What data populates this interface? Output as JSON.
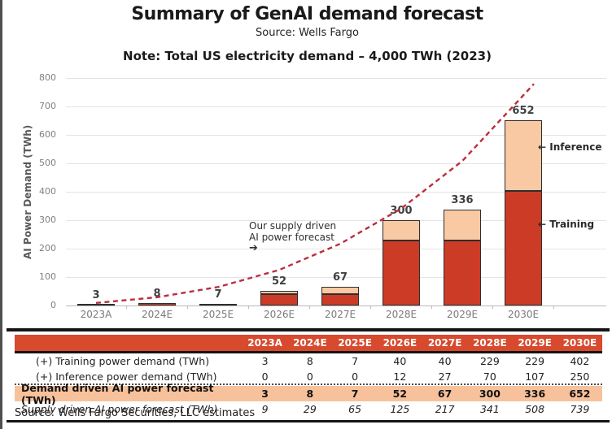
{
  "header": {
    "title": "Summary of GenAI demand forecast",
    "source": "Source: Wells Fargo",
    "note": "Note: Total US electricity demand – 4,000 TWh (2023)"
  },
  "chart_data": {
    "type": "bar",
    "categories": [
      "2023A",
      "2024E",
      "2025E",
      "2026E",
      "2027E",
      "2028E",
      "2029E",
      "2030E"
    ],
    "series": [
      {
        "name": "Training power demand (TWh)",
        "role": "bar-stack-bottom",
        "values": [
          3,
          8,
          7,
          40,
          40,
          229,
          229,
          402
        ]
      },
      {
        "name": "Inference power demand (TWh)",
        "role": "bar-stack-top",
        "values": [
          0,
          0,
          0,
          12,
          27,
          70,
          107,
          250
        ]
      },
      {
        "name": "Supply driven AI power forecast (TWh)",
        "role": "dashed-line",
        "values": [
          9,
          29,
          65,
          125,
          217,
          341,
          508,
          739
        ]
      }
    ],
    "bar_total_labels": [
      "3",
      "8",
      "7",
      "52",
      "67",
      "300",
      "336",
      "652"
    ],
    "title": "Summary of GenAI demand forecast",
    "xlabel": "",
    "ylabel": "AI Power Demand (TWh)",
    "ylim": [
      0,
      800
    ],
    "ytick_step": 100,
    "grid": true,
    "legend_position": "inline-annotations",
    "annotations": {
      "supply": {
        "line1": "Our supply driven",
        "line2": "AI power forecast",
        "arrow": "➔"
      },
      "inference": {
        "arrow": "←",
        "label": "Inference"
      },
      "training": {
        "arrow": "←",
        "label": "Training"
      }
    }
  },
  "table": {
    "year_headers": [
      "2023A",
      "2024E",
      "2025E",
      "2026E",
      "2027E",
      "2028E",
      "2029E",
      "2030E"
    ],
    "rows": [
      {
        "label": "(+) Training power demand (TWh)",
        "style": "normal",
        "values": [
          "3",
          "8",
          "7",
          "40",
          "40",
          "229",
          "229",
          "402"
        ]
      },
      {
        "label": "(+) Inference power demand (TWh)",
        "style": "dotted",
        "values": [
          "0",
          "0",
          "0",
          "12",
          "27",
          "70",
          "107",
          "250"
        ]
      },
      {
        "label": "Demand driven AI power forecast (TWh)",
        "style": "highlight",
        "values": [
          "3",
          "8",
          "7",
          "52",
          "67",
          "300",
          "336",
          "652"
        ]
      },
      {
        "label": "Supply driven AI power forecast (TWh)",
        "style": "italic",
        "values": [
          "9",
          "29",
          "65",
          "125",
          "217",
          "341",
          "508",
          "739"
        ]
      }
    ],
    "source": "Source: Wells Fargo Securities, LLC estimates"
  },
  "colors": {
    "training_red": "#cc3b26",
    "inference_peach": "#f9c9a3",
    "supply_line": "#bb2e3c",
    "table_header_red": "#d74a2e",
    "highlight_row": "#f7c29b"
  }
}
